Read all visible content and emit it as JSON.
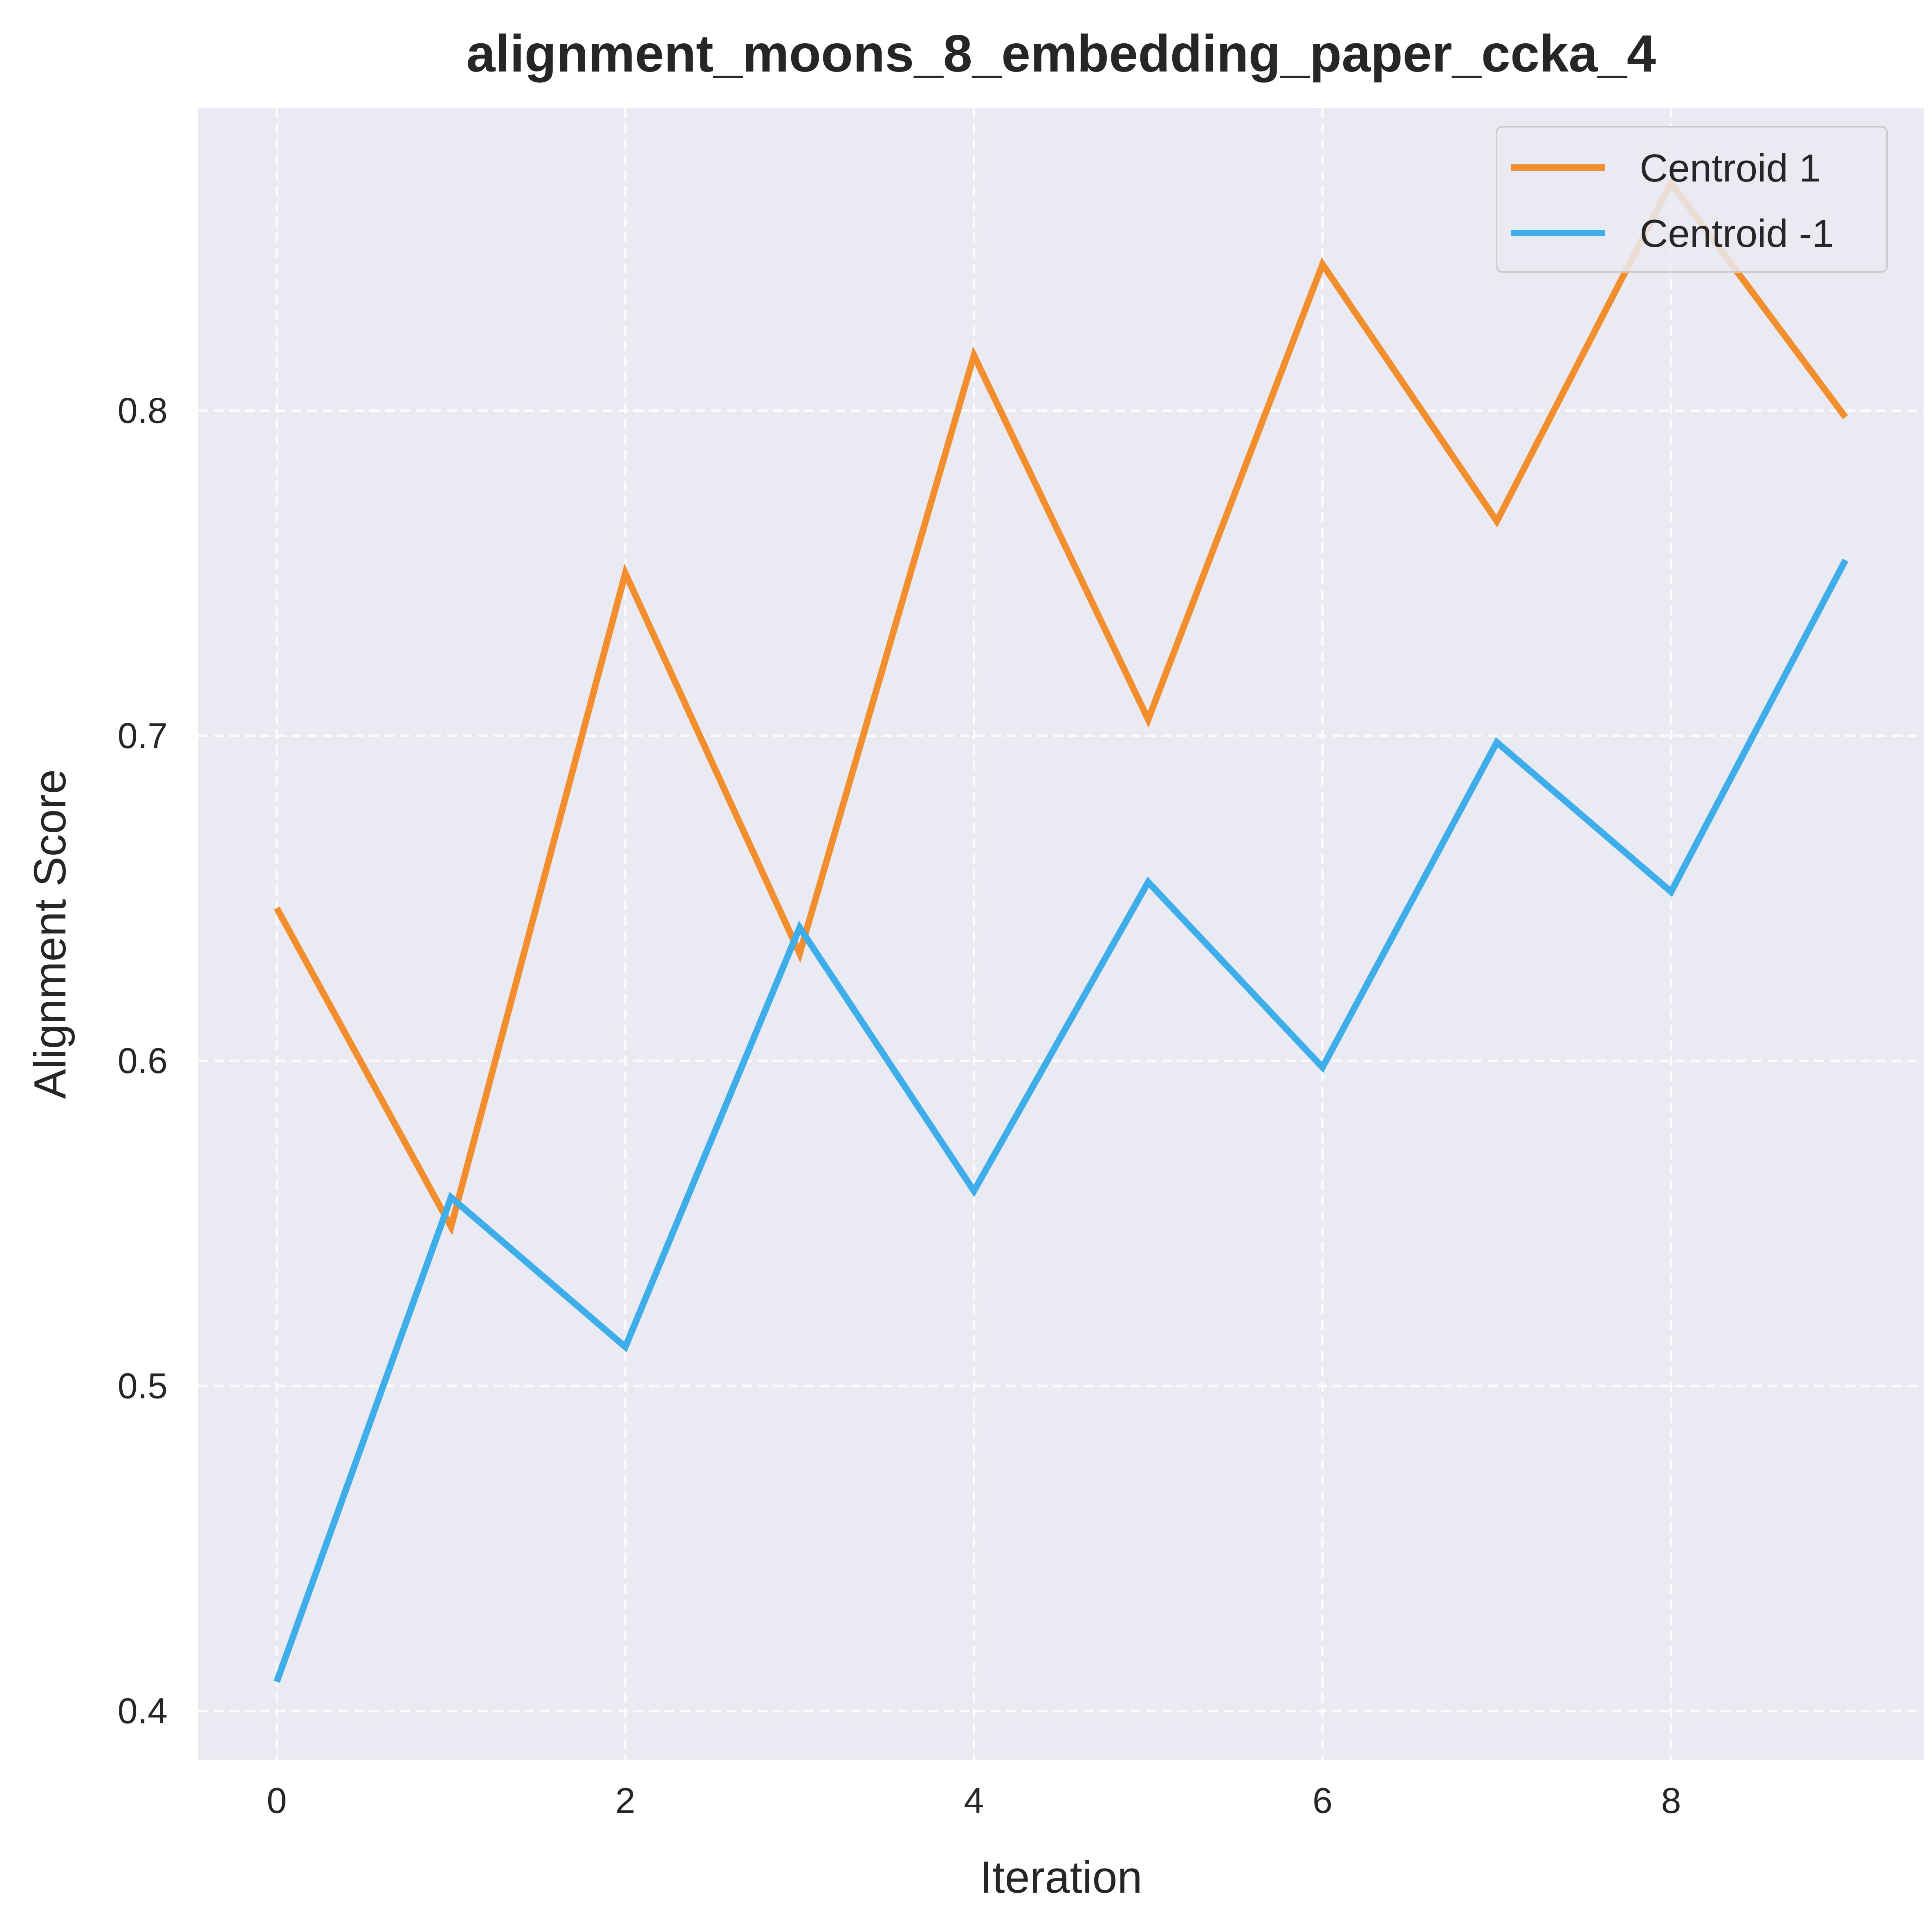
{
  "chart_data": {
    "type": "line",
    "title": "alignment_moons_8_embedding_paper_ccka_4",
    "xlabel": "Iteration",
    "ylabel": "Alignment Score",
    "x": [
      0,
      1,
      2,
      3,
      4,
      5,
      6,
      7,
      8,
      9
    ],
    "xticks": [
      0,
      2,
      4,
      6,
      8
    ],
    "yticks": [
      0.4,
      0.5,
      0.6,
      0.7,
      0.8
    ],
    "xlim": [
      -0.45,
      9.45
    ],
    "ylim": [
      0.385,
      0.893
    ],
    "grid": true,
    "legend_position": "top-right",
    "background_color": "#EAEAF2",
    "series": [
      {
        "name": "Centroid 1",
        "color": "#F28E2B",
        "values": [
          0.647,
          0.549,
          0.75,
          0.633,
          0.817,
          0.705,
          0.845,
          0.766,
          0.87,
          0.798
        ]
      },
      {
        "name": "Centroid -1",
        "color": "#3DAEE9",
        "values": [
          0.409,
          0.558,
          0.512,
          0.641,
          0.56,
          0.655,
          0.598,
          0.698,
          0.652,
          0.754
        ]
      }
    ]
  }
}
